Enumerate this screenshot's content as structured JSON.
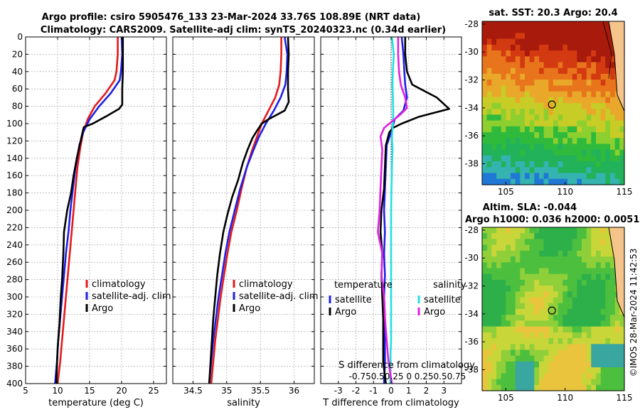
{
  "colors": {
    "red": "#e41a1c",
    "blue": "#1f1fe6",
    "black": "#000000",
    "cyan": "#22e0e0",
    "magenta": "#e020e0"
  },
  "titles": {
    "line1": "Argo profile: csiro 5905476_133 23-Mar-2024 33.76S 108.89E (NRT data)",
    "line2": "Climatology: CARS2009. Satellite-adj clim: synTS_20240323.nc (0.34d earlier)",
    "sst": "sat. SST: 20.3 Argo: 20.4",
    "sla1": "Altim. SLA: -0.044",
    "sla2": "Argo h1000: 0.036 h2000: 0.0051",
    "stamp": "©IMOS 28-Mar-2024 11:42:53"
  },
  "chart_data": [
    {
      "type": "line",
      "id": "temperature",
      "xlabel": "temperature (deg C)",
      "ylabel": "",
      "xlim": [
        5,
        27
      ],
      "ylim": [
        400,
        0
      ],
      "xticks": [
        5,
        10,
        15,
        20,
        25
      ],
      "yticks": [
        0,
        20,
        40,
        60,
        80,
        100,
        120,
        140,
        160,
        180,
        200,
        220,
        240,
        260,
        280,
        300,
        320,
        340,
        360,
        380,
        400
      ],
      "legend": [
        "climatology",
        "satellite-adj. clim",
        "Argo"
      ],
      "series": [
        {
          "name": "climatology",
          "color": "red",
          "points": [
            [
              19.4,
              0
            ],
            [
              19.4,
              20
            ],
            [
              19.2,
              40
            ],
            [
              18.9,
              50
            ],
            [
              17.5,
              65
            ],
            [
              15.8,
              80
            ],
            [
              14.7,
              95
            ],
            [
              14.0,
              110
            ],
            [
              13.6,
              125
            ],
            [
              13.1,
              150
            ],
            [
              12.8,
              175
            ],
            [
              12.5,
              200
            ],
            [
              12.2,
              225
            ],
            [
              11.9,
              250
            ],
            [
              11.6,
              275
            ],
            [
              11.3,
              300
            ],
            [
              11.0,
              325
            ],
            [
              10.7,
              350
            ],
            [
              10.4,
              375
            ],
            [
              10.0,
              400
            ]
          ]
        },
        {
          "name": "satellite-adj. clim",
          "color": "blue",
          "points": [
            [
              20.0,
              0
            ],
            [
              20.1,
              20
            ],
            [
              19.9,
              40
            ],
            [
              19.7,
              50
            ],
            [
              18.3,
              65
            ],
            [
              16.5,
              80
            ],
            [
              15.0,
              95
            ],
            [
              14.0,
              110
            ],
            [
              13.4,
              125
            ],
            [
              12.8,
              150
            ],
            [
              12.4,
              175
            ],
            [
              12.0,
              200
            ],
            [
              11.7,
              225
            ],
            [
              11.3,
              250
            ],
            [
              11.0,
              275
            ],
            [
              10.7,
              300
            ],
            [
              10.4,
              325
            ],
            [
              10.1,
              350
            ],
            [
              9.9,
              375
            ],
            [
              9.6,
              400
            ]
          ]
        },
        {
          "name": "Argo",
          "color": "black",
          "points": [
            [
              20.2,
              0
            ],
            [
              20.2,
              20
            ],
            [
              20.2,
              40
            ],
            [
              20.1,
              60
            ],
            [
              20.1,
              78
            ],
            [
              19.6,
              83
            ],
            [
              17.5,
              92
            ],
            [
              15.5,
              100
            ],
            [
              14.1,
              104
            ],
            [
              13.9,
              110
            ],
            [
              13.6,
              120
            ],
            [
              13.0,
              140
            ],
            [
              12.5,
              160
            ],
            [
              12.1,
              180
            ],
            [
              11.5,
              200
            ],
            [
              11.0,
              225
            ],
            [
              10.9,
              250
            ],
            [
              10.7,
              280
            ],
            [
              10.5,
              300
            ],
            [
              10.3,
              330
            ],
            [
              10.0,
              360
            ],
            [
              9.9,
              380
            ],
            [
              9.8,
              400
            ]
          ]
        }
      ]
    },
    {
      "type": "line",
      "id": "salinity",
      "xlabel": "salinity",
      "ylabel": "",
      "xlim": [
        34.2,
        36.3
      ],
      "ylim": [
        400,
        0
      ],
      "xticks": [
        34.5,
        35,
        35.5,
        36
      ],
      "legend": [
        "climatology",
        "satellite-adj. clim",
        "Argo"
      ],
      "series": [
        {
          "name": "climatology",
          "color": "red",
          "points": [
            [
              35.81,
              0
            ],
            [
              35.81,
              20
            ],
            [
              35.8,
              40
            ],
            [
              35.78,
              55
            ],
            [
              35.72,
              70
            ],
            [
              35.62,
              85
            ],
            [
              35.52,
              100
            ],
            [
              35.45,
              115
            ],
            [
              35.38,
              130
            ],
            [
              35.3,
              150
            ],
            [
              35.22,
              175
            ],
            [
              35.15,
              200
            ],
            [
              35.07,
              225
            ],
            [
              35.01,
              250
            ],
            [
              34.96,
              275
            ],
            [
              34.91,
              300
            ],
            [
              34.87,
              325
            ],
            [
              34.83,
              350
            ],
            [
              34.8,
              375
            ],
            [
              34.77,
              400
            ]
          ]
        },
        {
          "name": "satellite-adj. clim",
          "color": "blue",
          "points": [
            [
              35.86,
              0
            ],
            [
              35.9,
              20
            ],
            [
              35.89,
              40
            ],
            [
              35.87,
              55
            ],
            [
              35.8,
              70
            ],
            [
              35.7,
              85
            ],
            [
              35.58,
              100
            ],
            [
              35.48,
              115
            ],
            [
              35.4,
              130
            ],
            [
              35.3,
              150
            ],
            [
              35.2,
              175
            ],
            [
              35.12,
              200
            ],
            [
              35.04,
              225
            ],
            [
              34.98,
              250
            ],
            [
              34.93,
              275
            ],
            [
              34.88,
              300
            ],
            [
              34.84,
              325
            ],
            [
              34.8,
              350
            ],
            [
              34.77,
              375
            ],
            [
              34.74,
              400
            ]
          ]
        },
        {
          "name": "Argo",
          "color": "black",
          "points": [
            [
              35.91,
              0
            ],
            [
              35.92,
              20
            ],
            [
              35.91,
              40
            ],
            [
              35.91,
              60
            ],
            [
              35.92,
              75
            ],
            [
              35.86,
              85
            ],
            [
              35.62,
              95
            ],
            [
              35.52,
              100
            ],
            [
              35.45,
              108
            ],
            [
              35.38,
              117
            ],
            [
              35.31,
              130
            ],
            [
              35.24,
              145
            ],
            [
              35.17,
              165
            ],
            [
              35.08,
              185
            ],
            [
              35.01,
              205
            ],
            [
              34.95,
              225
            ],
            [
              34.9,
              250
            ],
            [
              34.86,
              275
            ],
            [
              34.83,
              300
            ],
            [
              34.8,
              325
            ],
            [
              34.78,
              350
            ],
            [
              34.76,
              375
            ],
            [
              34.74,
              400
            ]
          ]
        }
      ]
    },
    {
      "type": "line",
      "id": "difference",
      "xlabel": "T difference from climatology",
      "xlabel2": "S difference from climatology",
      "xlim": [
        -4,
        4
      ],
      "ylim": [
        400,
        0
      ],
      "xticks": [
        -3,
        -2,
        -1,
        0,
        1,
        2,
        3
      ],
      "xticks2": [
        -0.75,
        -0.5,
        -0.25,
        0,
        0.25,
        0.5,
        0.75
      ],
      "xticks2_labels": "-0.750.50.25  0  0.250.50.75",
      "legend_titles": [
        "temperature",
        "salinity"
      ],
      "legend": [
        "satellite",
        "Argo",
        "satellite",
        "Argo"
      ],
      "series": [
        {
          "name": "temperature satellite",
          "color": "blue",
          "points": [
            [
              0.6,
              0
            ],
            [
              0.7,
              20
            ],
            [
              0.75,
              40
            ],
            [
              0.8,
              55
            ],
            [
              0.9,
              70
            ],
            [
              0.7,
              85
            ],
            [
              0.2,
              95
            ],
            [
              0.0,
              110
            ],
            [
              -0.25,
              125
            ],
            [
              -0.3,
              150
            ],
            [
              -0.35,
              175
            ],
            [
              -0.4,
              200
            ],
            [
              -0.35,
              225
            ],
            [
              -0.4,
              250
            ],
            [
              -0.35,
              275
            ],
            [
              -0.4,
              300
            ],
            [
              -0.35,
              325
            ],
            [
              -0.35,
              350
            ],
            [
              -0.35,
              375
            ],
            [
              -0.4,
              400
            ]
          ]
        },
        {
          "name": "temperature Argo",
          "color": "black",
          "points": [
            [
              0.8,
              0
            ],
            [
              0.8,
              20
            ],
            [
              0.9,
              40
            ],
            [
              1.2,
              55
            ],
            [
              2.6,
              70
            ],
            [
              3.3,
              83
            ],
            [
              1.6,
              92
            ],
            [
              0.6,
              100
            ],
            [
              0.1,
              105
            ],
            [
              -0.1,
              110
            ],
            [
              -0.3,
              125
            ],
            [
              -0.35,
              150
            ],
            [
              -0.4,
              175
            ],
            [
              -0.55,
              200
            ],
            [
              -0.6,
              225
            ],
            [
              -0.5,
              250
            ],
            [
              -0.55,
              275
            ],
            [
              -0.5,
              300
            ],
            [
              -0.45,
              325
            ],
            [
              -0.45,
              350
            ],
            [
              -0.45,
              375
            ],
            [
              -0.3,
              400
            ]
          ]
        },
        {
          "name": "salinity satellite",
          "color": "cyan",
          "points": [
            [
              0.05,
              0
            ],
            [
              0.15,
              20
            ],
            [
              0.1,
              40
            ],
            [
              0.08,
              55
            ],
            [
              0.1,
              70
            ],
            [
              0.12,
              85
            ],
            [
              0.1,
              100
            ],
            [
              0.05,
              115
            ],
            [
              0.08,
              130
            ],
            [
              0.05,
              150
            ],
            [
              0.02,
              175
            ],
            [
              0.0,
              200
            ],
            [
              0.0,
              225
            ],
            [
              0.0,
              250
            ],
            [
              0.0,
              275
            ],
            [
              0.0,
              300
            ],
            [
              0.0,
              325
            ],
            [
              0.0,
              350
            ],
            [
              -0.05,
              375
            ],
            [
              -0.05,
              400
            ]
          ]
        },
        {
          "name": "salinity Argo",
          "color": "magenta",
          "points": [
            [
              0.4,
              0
            ],
            [
              0.4,
              20
            ],
            [
              0.45,
              40
            ],
            [
              0.55,
              55
            ],
            [
              0.8,
              70
            ],
            [
              0.9,
              82
            ],
            [
              0.5,
              90
            ],
            [
              -0.4,
              105
            ],
            [
              -0.6,
              115
            ],
            [
              -0.5,
              130
            ],
            [
              -0.55,
              150
            ],
            [
              -0.6,
              175
            ],
            [
              -0.65,
              200
            ],
            [
              -0.75,
              225
            ],
            [
              -0.5,
              250
            ],
            [
              -0.55,
              275
            ],
            [
              -0.4,
              300
            ],
            [
              -0.35,
              325
            ],
            [
              -0.25,
              350
            ],
            [
              -0.15,
              375
            ],
            [
              0.05,
              400
            ]
          ]
        }
      ]
    },
    {
      "type": "heatmap",
      "id": "sst-map",
      "xlim": [
        103,
        115
      ],
      "ylim": [
        -39.5,
        -27.8
      ],
      "xticks": [
        105,
        110,
        115
      ],
      "yticks": [
        -28,
        -30,
        -32,
        -34,
        -36,
        -38
      ],
      "marker": {
        "lon": 108.89,
        "lat": -33.76
      }
    },
    {
      "type": "heatmap",
      "id": "sla-map",
      "xlim": [
        103,
        115
      ],
      "ylim": [
        -39.5,
        -27.8
      ],
      "xticks": [
        105,
        110,
        115
      ],
      "yticks": [
        -28,
        -30,
        -32,
        -34,
        -36,
        -38
      ],
      "marker": {
        "lon": 108.89,
        "lat": -33.76
      }
    }
  ]
}
